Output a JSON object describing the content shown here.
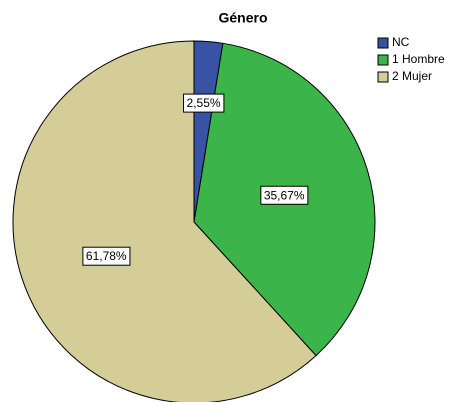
{
  "chart_data": {
    "type": "pie",
    "title": "Género",
    "categories": [
      "NC",
      "1 Hombre",
      "2 Mujer"
    ],
    "values": [
      2.55,
      35.67,
      61.78
    ],
    "value_labels": [
      "2,55%",
      "35,67%",
      "61,78%"
    ],
    "colors": [
      "#3953a4",
      "#3bb54a",
      "#d4cd97"
    ],
    "legend": "top-right"
  }
}
